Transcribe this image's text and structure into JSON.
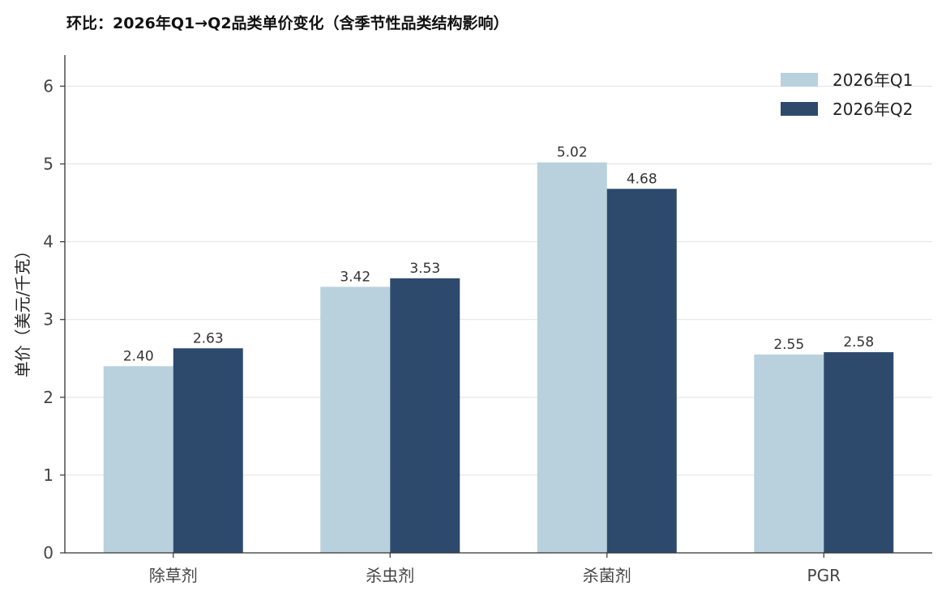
{
  "chart_data": {
    "type": "bar",
    "title": "环比：2026年Q1→Q2品类单价变化（含季节性品类结构影响）",
    "xlabel": "",
    "ylabel": "单价（美元/千克）",
    "categories": [
      "除草剂",
      "杀虫剂",
      "杀菌剂",
      "PGR"
    ],
    "series": [
      {
        "name": "2026年Q1",
        "color": "#b8d1dd",
        "values": [
          2.4,
          3.42,
          5.02,
          2.55
        ]
      },
      {
        "name": "2026年Q2",
        "color": "#2d4a6d",
        "values": [
          2.63,
          3.53,
          4.68,
          2.58
        ]
      }
    ],
    "data_labels": [
      [
        "2.40",
        "3.42",
        "5.02",
        "2.55"
      ],
      [
        "2.63",
        "3.53",
        "4.68",
        "2.58"
      ]
    ],
    "ylim": [
      0,
      6.4
    ],
    "yticks": [
      0,
      1,
      2,
      3,
      4,
      5,
      6
    ],
    "grid": true,
    "legend_position": "top-right"
  }
}
